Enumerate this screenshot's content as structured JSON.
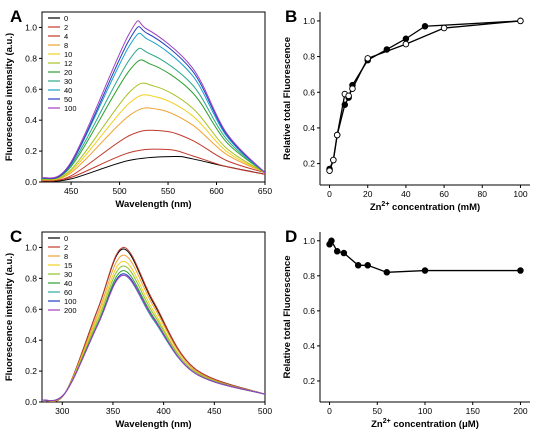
{
  "chart_data": [
    {
      "panel": "A",
      "type": "line",
      "xlabel": "Wavelength (nm)",
      "ylabel": "Fluorescence intensity (a.u.)",
      "xlim": [
        420,
        650
      ],
      "ylim": [
        0,
        1.1
      ],
      "xticks": [
        450,
        500,
        550,
        600,
        650
      ],
      "yticks": [
        0.0,
        0.2,
        0.4,
        0.6,
        0.8,
        1.0
      ],
      "legend_position": "top-left",
      "series": [
        {
          "name": "0",
          "color": "#000000",
          "peak_x": 556,
          "values": [
            0.02,
            0.14,
            0.165,
            0.15,
            0.1,
            0.05
          ]
        },
        {
          "name": "2",
          "color": "#c0392b",
          "peak_x": 550,
          "values": [
            0.03,
            0.19,
            0.21,
            0.17,
            0.1,
            0.05
          ]
        },
        {
          "name": "4",
          "color": "#c0392b",
          "peak_x": 545,
          "values": [
            0.04,
            0.3,
            0.33,
            0.27,
            0.14,
            0.06
          ]
        },
        {
          "name": "8",
          "color": "#f0a030",
          "peak_x": 540,
          "values": [
            0.06,
            0.43,
            0.47,
            0.37,
            0.18,
            0.06
          ]
        },
        {
          "name": "10",
          "color": "#f0d020",
          "peak_x": 538,
          "values": [
            0.07,
            0.51,
            0.55,
            0.43,
            0.2,
            0.06
          ]
        },
        {
          "name": "12",
          "color": "#a8c020",
          "peak_x": 536,
          "values": [
            0.08,
            0.58,
            0.62,
            0.48,
            0.22,
            0.06
          ]
        },
        {
          "name": "20",
          "color": "#2e9e2e",
          "peak_x": 533,
          "values": [
            0.1,
            0.72,
            0.76,
            0.58,
            0.26,
            0.06
          ]
        },
        {
          "name": "30",
          "color": "#2ea88a",
          "peak_x": 531,
          "values": [
            0.11,
            0.79,
            0.83,
            0.63,
            0.28,
            0.06
          ]
        },
        {
          "name": "40",
          "color": "#1aa0c8",
          "peak_x": 530,
          "values": [
            0.12,
            0.88,
            0.92,
            0.69,
            0.3,
            0.06
          ]
        },
        {
          "name": "50",
          "color": "#2040c0",
          "peak_x": 529,
          "values": [
            0.12,
            0.92,
            0.96,
            0.72,
            0.31,
            0.06
          ]
        },
        {
          "name": "100",
          "color": "#a040c0",
          "peak_x": 528,
          "values": [
            0.13,
            0.96,
            0.99,
            0.74,
            0.32,
            0.06
          ]
        }
      ],
      "x_sample": [
        450,
        510,
        "peak",
        575,
        610,
        650
      ]
    },
    {
      "panel": "B",
      "type": "scatter",
      "xlabel_pre": "Zn",
      "xlabel_sup": "2+",
      "xlabel_post": " concentration (mM)",
      "ylabel": "Relative total Fluorescence",
      "xlim": [
        -5,
        105
      ],
      "ylim": [
        0.08,
        1.05
      ],
      "xticks": [
        0,
        20,
        40,
        60,
        80,
        100
      ],
      "yticks": [
        0.2,
        0.4,
        0.6,
        0.8,
        1.0
      ],
      "series": [
        {
          "name": "filled",
          "marker": "filled",
          "x": [
            0,
            2,
            4,
            8,
            10,
            12,
            20,
            30,
            40,
            50,
            100
          ],
          "y": [
            0.17,
            0.22,
            0.36,
            0.53,
            0.57,
            0.64,
            0.78,
            0.84,
            0.9,
            0.97,
            1.0
          ]
        },
        {
          "name": "open",
          "marker": "open",
          "x": [
            0,
            2,
            4,
            8,
            10,
            12,
            20,
            40,
            60,
            100
          ],
          "y": [
            0.16,
            0.22,
            0.36,
            0.59,
            0.58,
            0.62,
            0.79,
            0.87,
            0.96,
            1.0
          ]
        }
      ]
    },
    {
      "panel": "C",
      "type": "line",
      "xlabel": "Wavelength (nm)",
      "ylabel": "Fluorescence intensity (a.u.)",
      "xlim": [
        280,
        500
      ],
      "ylim": [
        0,
        1.1
      ],
      "xticks": [
        300,
        350,
        400,
        450,
        500
      ],
      "yticks": [
        0.0,
        0.2,
        0.4,
        0.6,
        0.8,
        1.0
      ],
      "legend_position": "top-left",
      "series": [
        {
          "name": "0",
          "color": "#000000",
          "values": [
            0.06,
            0.6,
            0.99,
            0.64,
            0.22,
            0.05
          ]
        },
        {
          "name": "2",
          "color": "#c0392b",
          "values": [
            0.06,
            0.6,
            1.0,
            0.65,
            0.22,
            0.05
          ]
        },
        {
          "name": "8",
          "color": "#f0a030",
          "values": [
            0.06,
            0.57,
            0.95,
            0.62,
            0.21,
            0.05
          ]
        },
        {
          "name": "15",
          "color": "#f0d020",
          "values": [
            0.06,
            0.55,
            0.91,
            0.59,
            0.2,
            0.05
          ]
        },
        {
          "name": "30",
          "color": "#90c030",
          "values": [
            0.06,
            0.53,
            0.88,
            0.57,
            0.2,
            0.05
          ]
        },
        {
          "name": "40",
          "color": "#2e9e2e",
          "values": [
            0.06,
            0.51,
            0.85,
            0.55,
            0.19,
            0.05
          ]
        },
        {
          "name": "60",
          "color": "#2ea8a0",
          "values": [
            0.06,
            0.5,
            0.82,
            0.53,
            0.19,
            0.05
          ]
        },
        {
          "name": "100",
          "color": "#2040c0",
          "values": [
            0.06,
            0.5,
            0.83,
            0.54,
            0.19,
            0.05
          ]
        },
        {
          "name": "200",
          "color": "#a040c0",
          "values": [
            0.06,
            0.5,
            0.82,
            0.54,
            0.19,
            0.05
          ]
        }
      ],
      "x_sample": [
        303,
        335,
        360,
        390,
        430,
        500
      ]
    },
    {
      "panel": "D",
      "type": "scatter",
      "xlabel_pre": "Zn",
      "xlabel_sup": "2+",
      "xlabel_post": " concentration (",
      "xlabel_mu": "μ",
      "xlabel_end": "M)",
      "ylabel": "Relative total Fluorescence",
      "xlim": [
        -10,
        210
      ],
      "ylim": [
        0.08,
        1.05
      ],
      "xticks": [
        0,
        50,
        100,
        150,
        200
      ],
      "yticks": [
        0.2,
        0.4,
        0.6,
        0.8,
        1.0
      ],
      "series": [
        {
          "name": "filled",
          "marker": "filled",
          "x": [
            0,
            2,
            8,
            15,
            30,
            40,
            60,
            100,
            200
          ],
          "y": [
            0.98,
            1.0,
            0.94,
            0.93,
            0.86,
            0.86,
            0.82,
            0.83,
            0.83
          ]
        }
      ]
    }
  ]
}
